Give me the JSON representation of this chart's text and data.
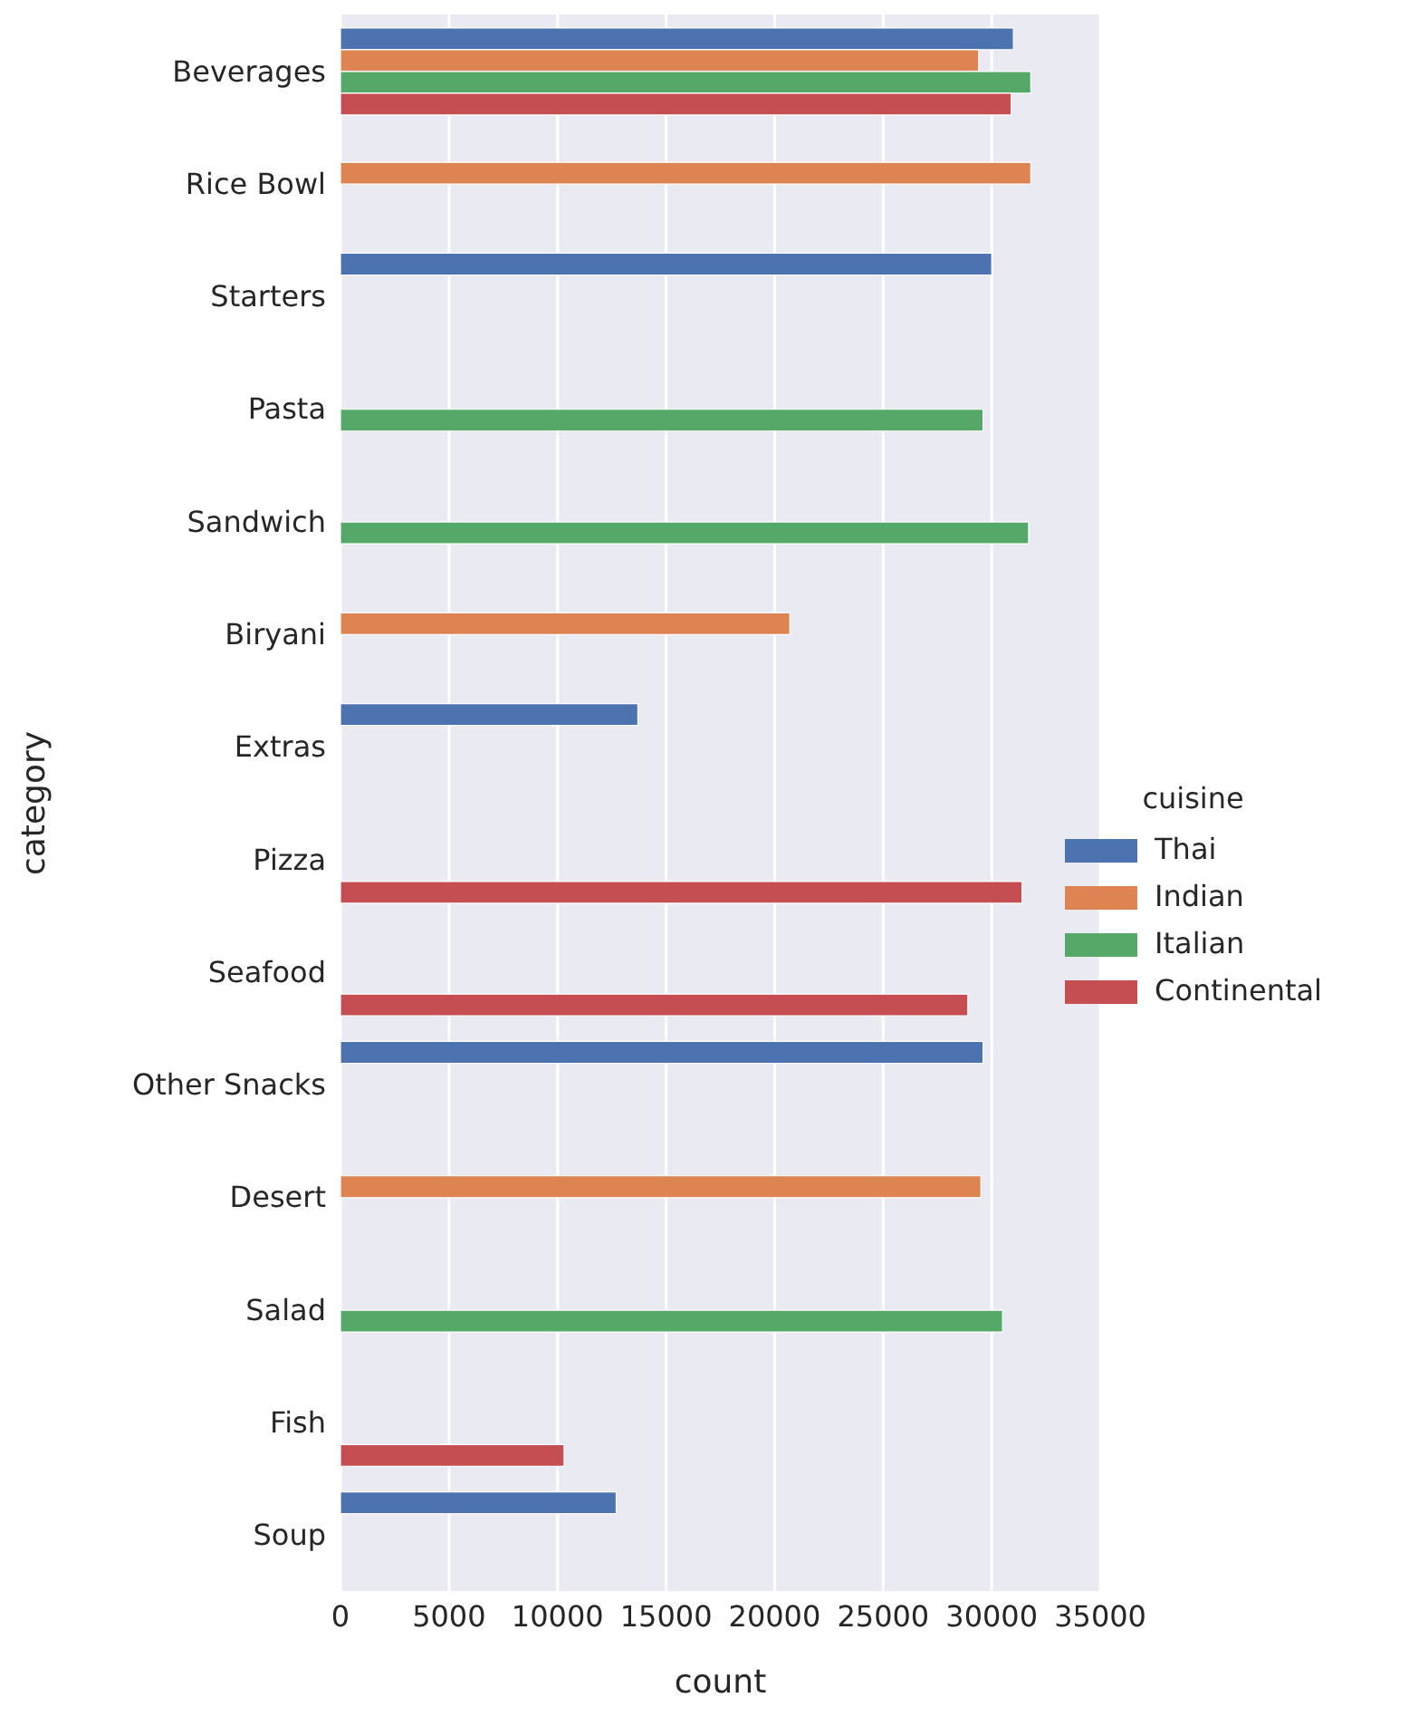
{
  "chart_data": {
    "type": "bar",
    "orientation": "horizontal",
    "xlabel": "count",
    "ylabel": "category",
    "legend_title": "cuisine",
    "categories": [
      "Beverages",
      "Rice Bowl",
      "Starters",
      "Pasta",
      "Sandwich",
      "Biryani",
      "Extras",
      "Pizza",
      "Seafood",
      "Other Snacks",
      "Desert",
      "Salad",
      "Fish",
      "Soup"
    ],
    "series": [
      {
        "name": "Thai",
        "color": "#4c72b0",
        "values": [
          31000,
          null,
          30000,
          null,
          null,
          null,
          13700,
          null,
          null,
          29600,
          null,
          null,
          null,
          12700
        ]
      },
      {
        "name": "Indian",
        "color": "#dd8452",
        "values": [
          29400,
          31800,
          null,
          null,
          null,
          20700,
          null,
          null,
          null,
          null,
          29500,
          null,
          null,
          null
        ]
      },
      {
        "name": "Italian",
        "color": "#55a868",
        "values": [
          31800,
          null,
          null,
          29600,
          31700,
          null,
          null,
          null,
          null,
          null,
          null,
          30500,
          null,
          null
        ]
      },
      {
        "name": "Continental",
        "color": "#c44e52",
        "values": [
          30900,
          null,
          null,
          null,
          null,
          null,
          null,
          31400,
          28900,
          null,
          null,
          null,
          10300,
          null
        ]
      }
    ],
    "xlim": [
      0,
      35000
    ],
    "xticks": [
      0,
      5000,
      10000,
      15000,
      20000,
      25000,
      30000,
      35000
    ],
    "grid": "x",
    "legend": "center right"
  }
}
